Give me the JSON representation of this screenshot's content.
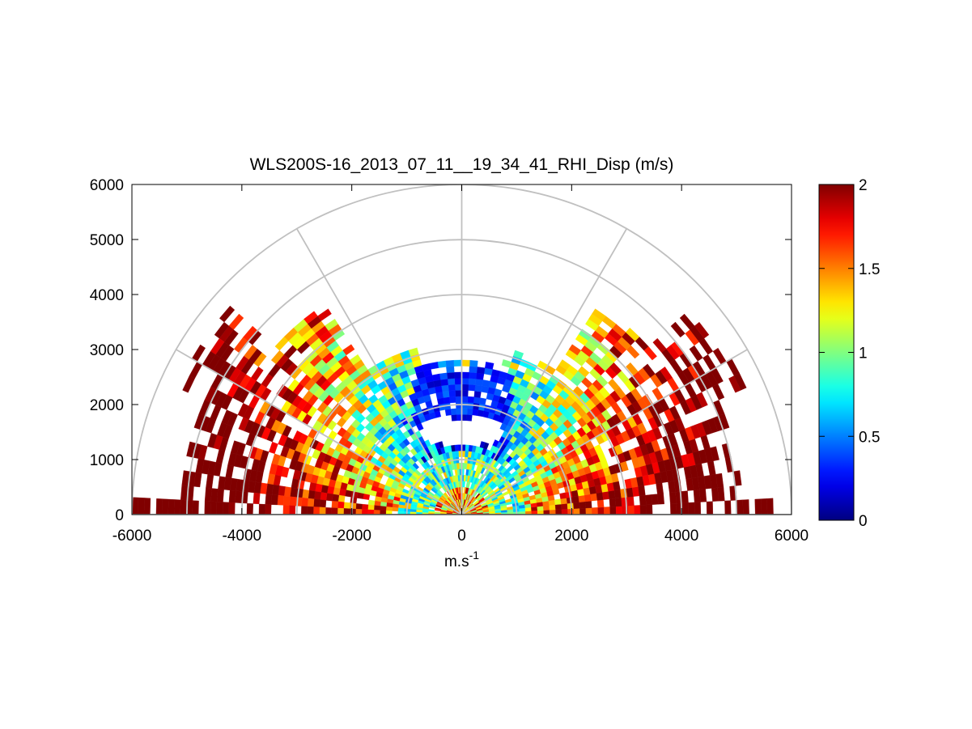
{
  "chart_data": {
    "type": "heatmap",
    "subtype": "polar-rhi-scan",
    "title": "WLS200S-16_2013_07_11__19_34_41_RHI_Disp (m/s)",
    "xlabel": "m.s",
    "xlabel_superscript": "-1",
    "ylabel": "",
    "xlim": [
      -6000,
      6000
    ],
    "ylim": [
      0,
      6000
    ],
    "x_ticks": [
      "-6000",
      "-4000",
      "-2000",
      "0",
      "2000",
      "4000",
      "6000"
    ],
    "y_ticks": [
      "0",
      "1000",
      "2000",
      "3000",
      "4000",
      "5000",
      "6000"
    ],
    "grid": "polar",
    "polar_grid": {
      "ring_radii": [
        1000,
        2000,
        3000,
        4000,
        5000,
        6000
      ],
      "spoke_angles_deg": [
        0,
        30,
        60,
        90,
        120,
        150,
        180
      ]
    },
    "colorbar": {
      "colormap": "jet",
      "range": [
        0,
        2
      ],
      "ticks": [
        "0",
        "0.5",
        "1",
        "1.5",
        "2"
      ],
      "placement": "right"
    },
    "field_description": "velocity dispersion values 0-2 m/s along radar beams; low values (blue) near 2000-2500 m altitude above center, high values (dark red) at outer ranges on both sides"
  },
  "colors": {
    "grid": "#c0c0c0",
    "axes": "#000000",
    "background": "#ffffff"
  }
}
